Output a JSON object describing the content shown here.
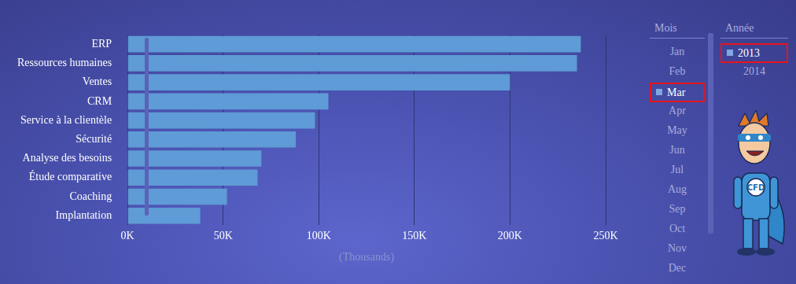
{
  "chart_data": {
    "type": "bar",
    "orientation": "horizontal",
    "categories": [
      "ERP",
      "Ressources humaines",
      "Ventes",
      "CRM",
      "Service à la clientèle",
      "Sécurité",
      "Analyse des besoins",
      "Étude comparative",
      "Coaching",
      "Implantation"
    ],
    "values": [
      237000,
      235000,
      200000,
      105000,
      98000,
      88000,
      70000,
      68000,
      52000,
      38000
    ],
    "color": "#5f9bd6",
    "xlabel": "(Thousands)",
    "xlim": [
      0,
      250000
    ],
    "xticks": [
      {
        "value": 0,
        "label": "0K"
      },
      {
        "value": 50000,
        "label": "50K"
      },
      {
        "value": 100000,
        "label": "100K"
      },
      {
        "value": 150000,
        "label": "150K"
      },
      {
        "value": 200000,
        "label": "200K"
      },
      {
        "value": 250000,
        "label": "250K"
      }
    ],
    "grid": true
  },
  "slicers": [
    {
      "title": "Mois",
      "items": [
        "Jan",
        "Feb",
        "Mar",
        "Apr",
        "May",
        "Jun",
        "Jul",
        "Aug",
        "Sep",
        "Oct",
        "Nov",
        "Dec"
      ],
      "selected": "Mar"
    },
    {
      "title": "Année",
      "items": [
        "2013",
        "2014"
      ],
      "selected": "2013"
    }
  ],
  "mascot": {
    "label": "CFD"
  }
}
